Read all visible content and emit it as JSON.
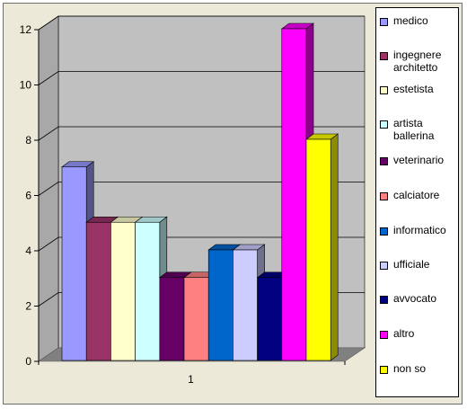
{
  "chart_data": {
    "type": "bar",
    "categories": [
      "1"
    ],
    "ylim": [
      0,
      12
    ],
    "yticks": [
      0,
      2,
      4,
      6,
      8,
      10,
      12
    ],
    "grid": true,
    "legend_position": "right",
    "title": "",
    "xlabel": "",
    "ylabel": "",
    "series": [
      {
        "name": "medico",
        "values": [
          7
        ],
        "color": "#9999ff"
      },
      {
        "name": "ingegnere architetto",
        "values": [
          5
        ],
        "color": "#993366"
      },
      {
        "name": "estetista",
        "values": [
          5
        ],
        "color": "#ffffcc"
      },
      {
        "name": "artista ballerina",
        "values": [
          5
        ],
        "color": "#ccffff"
      },
      {
        "name": "veterinario",
        "values": [
          3
        ],
        "color": "#660066"
      },
      {
        "name": "calciatore",
        "values": [
          3
        ],
        "color": "#ff8080"
      },
      {
        "name": "informatico",
        "values": [
          4
        ],
        "color": "#0066cc"
      },
      {
        "name": "ufficiale",
        "values": [
          4
        ],
        "color": "#ccccff"
      },
      {
        "name": "avvocato",
        "values": [
          3
        ],
        "color": "#000080"
      },
      {
        "name": "altro",
        "values": [
          12
        ],
        "color": "#ff00ff"
      },
      {
        "name": "non so",
        "values": [
          8
        ],
        "color": "#ffff00"
      }
    ]
  },
  "colors": {
    "frame_background": "#ece9d8",
    "wall": "#c0c0c0",
    "floor": "#808080",
    "gridline": "#000000"
  }
}
